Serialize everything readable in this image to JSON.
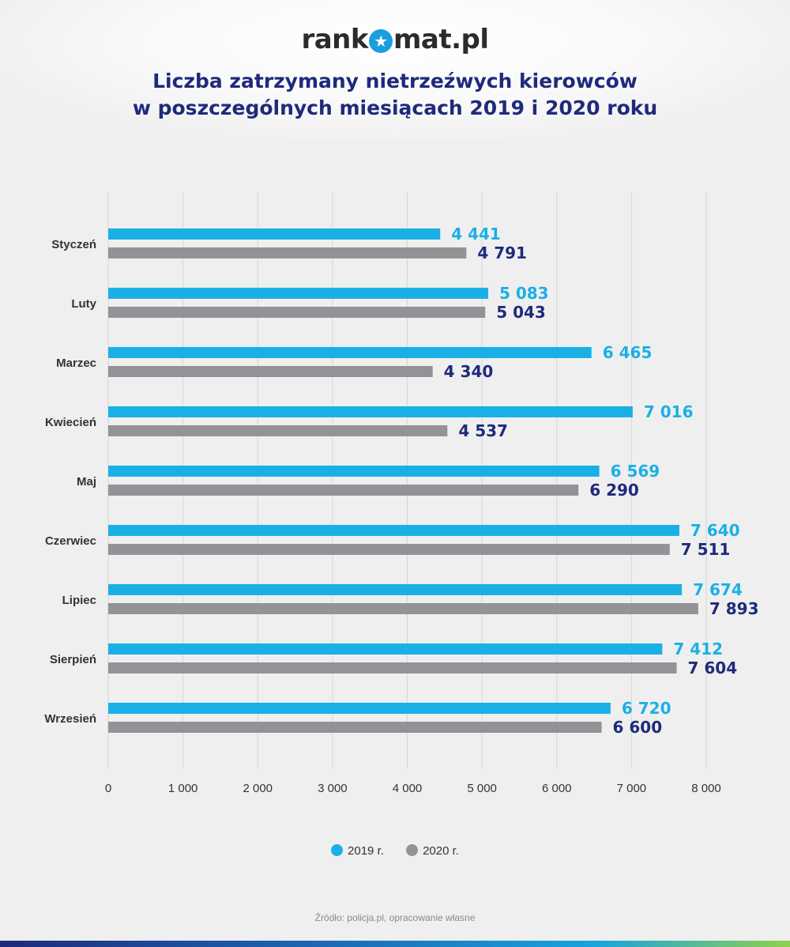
{
  "header": {
    "logo_left": "rank",
    "logo_right": "mat.pl",
    "title_line1": "Liczba zatrzymany nietrzeźwych kierowców",
    "title_line2": "w poszczególnych miesiącach 2019 i 2020 roku"
  },
  "colors": {
    "series_2019": "#1ab0e6",
    "series_2020": "#929297",
    "label_2019": "#1ab0e6",
    "label_2020": "#1f2a7c",
    "grid": "#d6d6d6",
    "text": "#333333"
  },
  "chart_data": {
    "type": "bar",
    "orientation": "horizontal",
    "categories": [
      "Styczeń",
      "Luty",
      "Marzec",
      "Kwiecień",
      "Maj",
      "Czerwiec",
      "Lipiec",
      "Sierpień",
      "Wrzesień"
    ],
    "series": [
      {
        "name": "2019 r.",
        "values": [
          4441,
          5083,
          6465,
          7016,
          6569,
          7640,
          7674,
          7412,
          6720
        ],
        "labels": [
          "4 441",
          "5 083",
          "6 465",
          "7 016",
          "6 569",
          "7 640",
          "7 674",
          "7 412",
          "6 720"
        ]
      },
      {
        "name": "2020 r.",
        "values": [
          4791,
          5043,
          4340,
          4537,
          6290,
          7511,
          7893,
          7604,
          6600
        ],
        "labels": [
          "4 791",
          "5 043",
          "4 340",
          "4 537",
          "6 290",
          "7 511",
          "7 893",
          "7 604",
          "6 600"
        ]
      }
    ],
    "xlim": [
      0,
      8000
    ],
    "xticks": [
      0,
      1000,
      2000,
      3000,
      4000,
      5000,
      6000,
      7000,
      8000
    ],
    "xtick_labels": [
      "0",
      "1 000",
      "2 000",
      "3 000",
      "4 000",
      "5 000",
      "6 000",
      "7 000",
      "8 000"
    ],
    "grid": true,
    "legend": "bottom-center"
  },
  "source": "Źródło: policja.pl, opracowanie własne"
}
